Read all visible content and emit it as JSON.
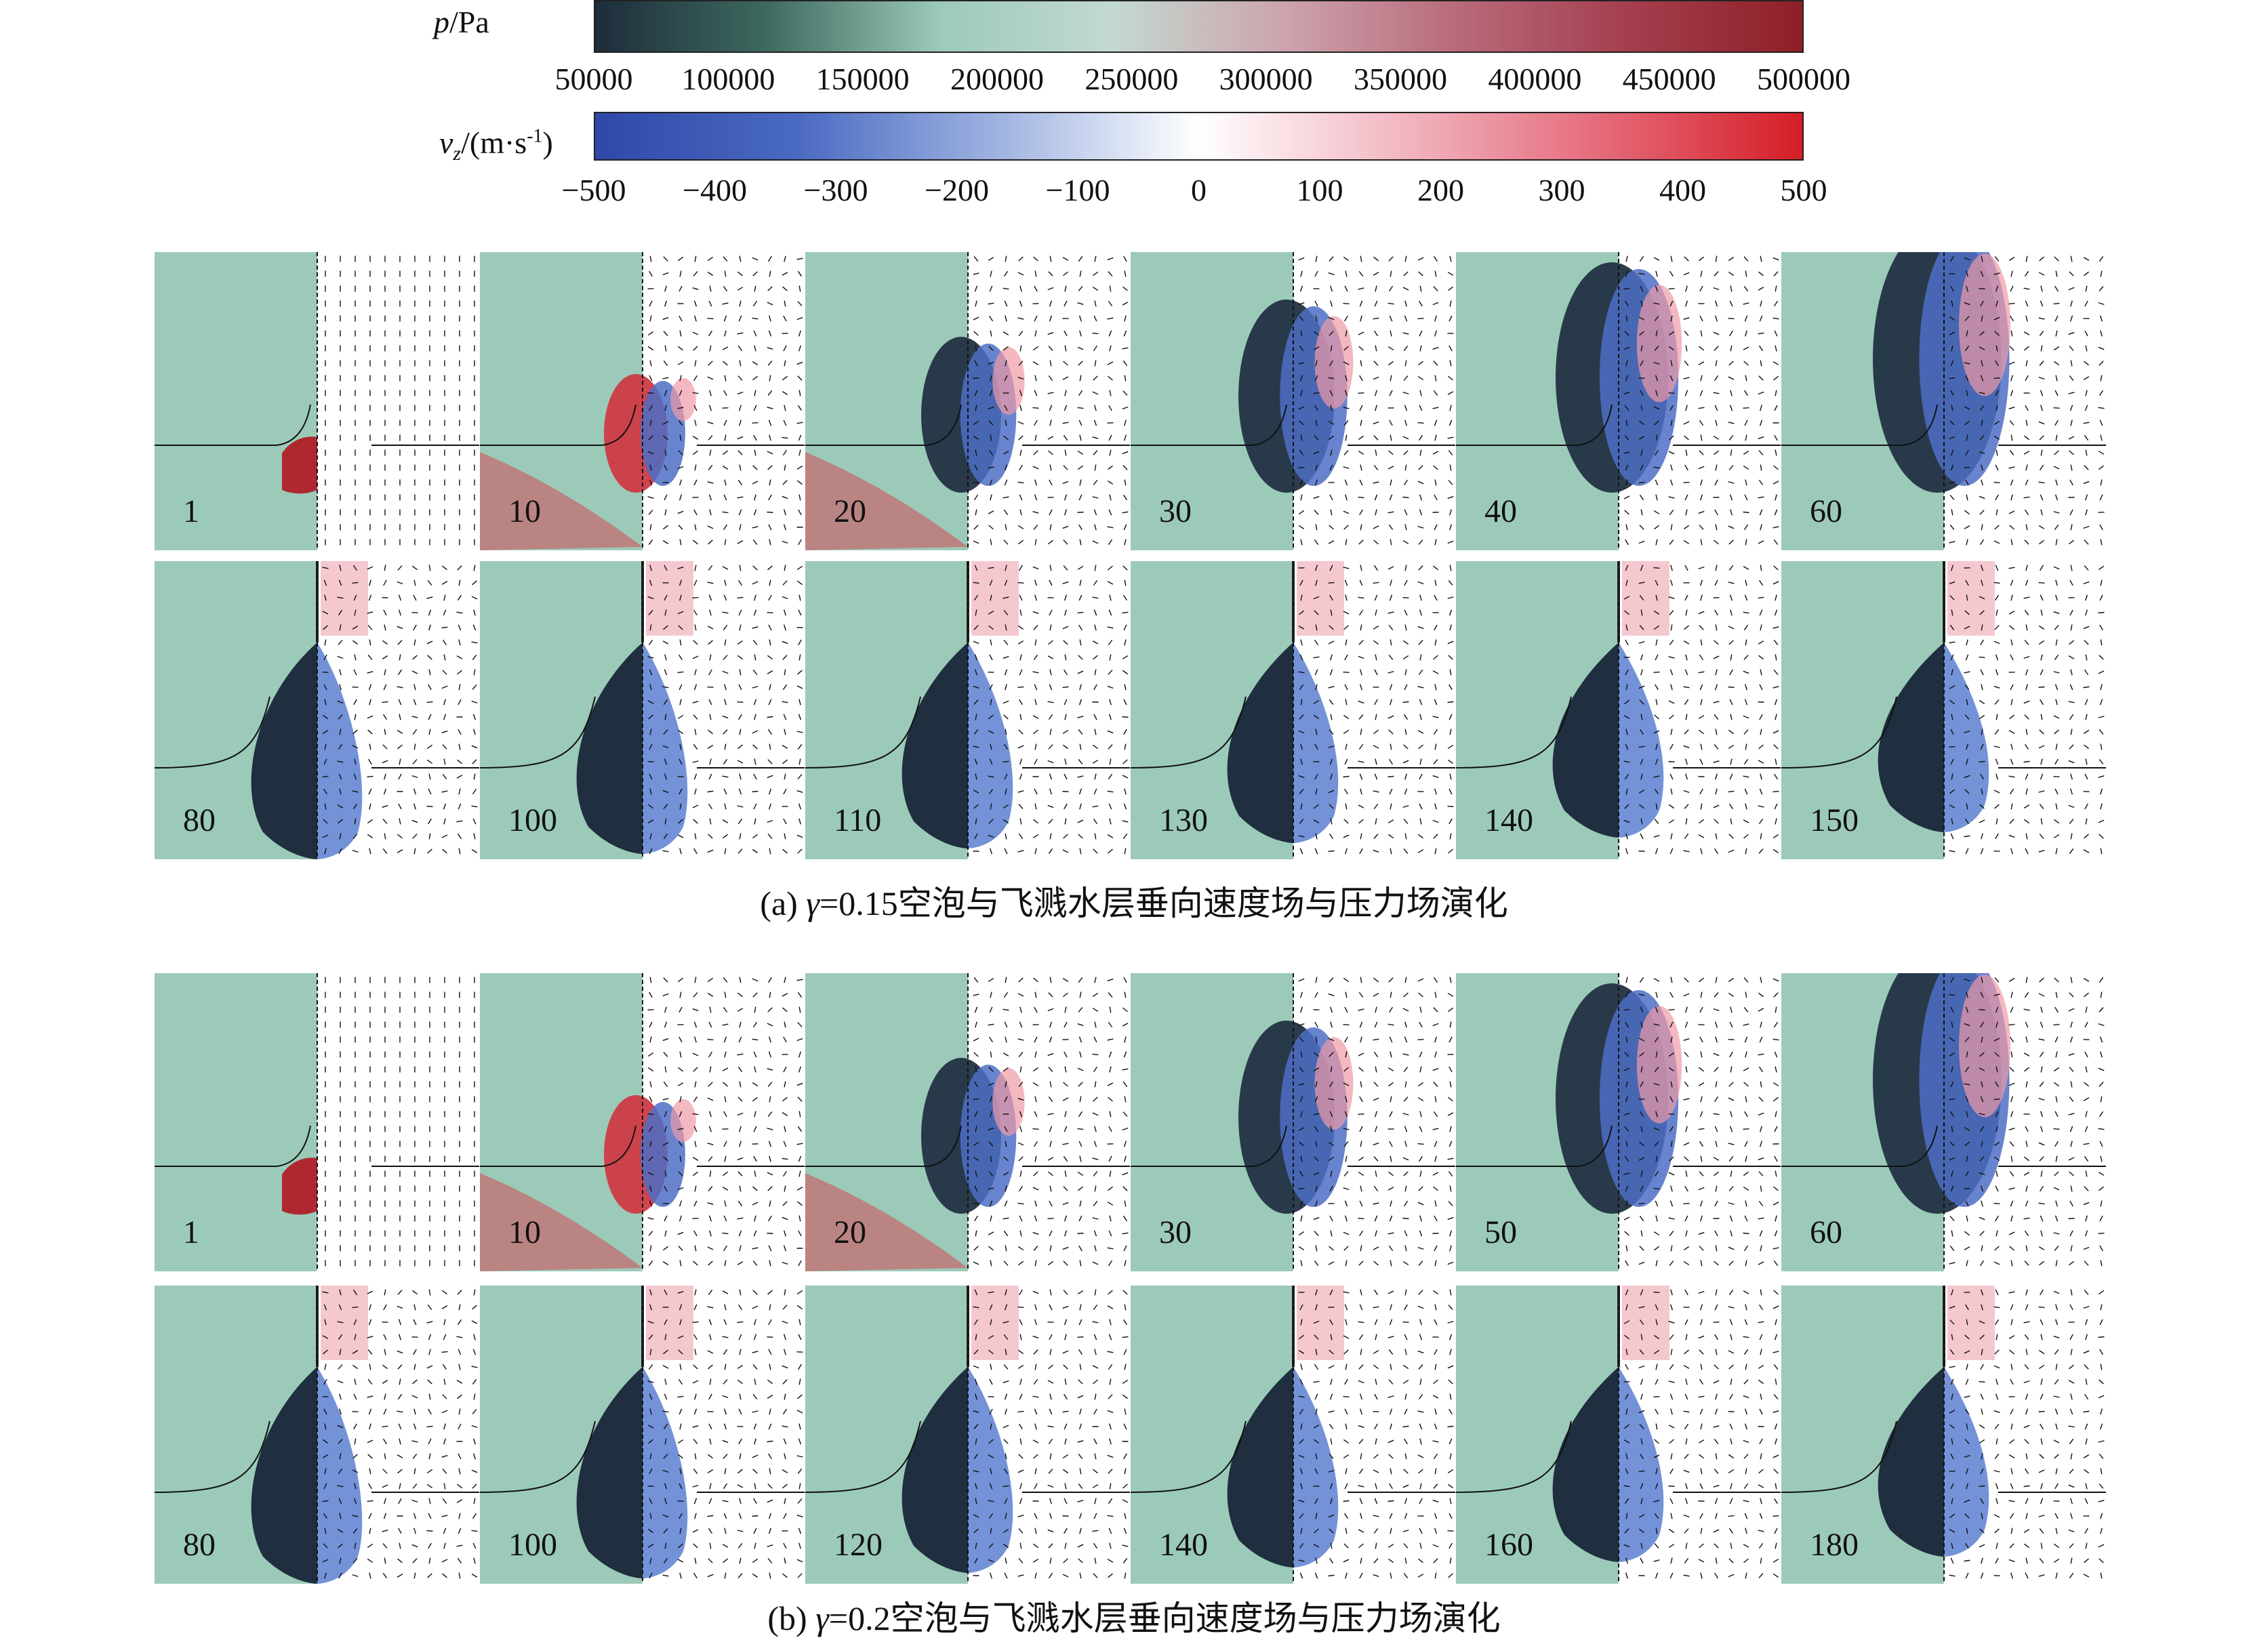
{
  "colorbar_pressure": {
    "symbol": "p",
    "unit": "/Pa",
    "ticks": [
      "50000",
      "100000",
      "150000",
      "200000",
      "250000",
      "300000",
      "350000",
      "400000",
      "450000",
      "500000"
    ],
    "colors": [
      "#1d2c3a",
      "#3e6a60",
      "#9ccab9",
      "#c3d9d0",
      "#cda3ad",
      "#b86a7a",
      "#a43e4e",
      "#8e1f26"
    ]
  },
  "colorbar_velocity": {
    "symbol": "v",
    "subscript": "z",
    "unit": "/(m·s",
    "unit_exp": "-1",
    "unit_close": ")",
    "ticks": [
      "−500",
      "−400",
      "−300",
      "−200",
      "−100",
      "0",
      "100",
      "200",
      "300",
      "400",
      "500"
    ],
    "colors": [
      "#2f48a8",
      "#4a6ac2",
      "#9fb3e1",
      "#ffffff",
      "#f3b7c2",
      "#e46a7a",
      "#d61e26"
    ]
  },
  "section_a": {
    "caption_prefix": "(a) ",
    "gamma_symbol": "γ",
    "caption_suffix": "=0.15空泡与飞溅水层垂向速度场与压力场演化",
    "row1_frames": [
      "1",
      "10",
      "20",
      "30",
      "40",
      "60"
    ],
    "row2_frames": [
      "80",
      "100",
      "110",
      "130",
      "140",
      "150"
    ]
  },
  "section_b": {
    "caption_prefix": "(b) ",
    "gamma_symbol": "γ",
    "caption_suffix": "=0.2空泡与飞溅水层垂向速度场与压力场演化",
    "row1_frames": [
      "1",
      "10",
      "20",
      "30",
      "50",
      "60"
    ],
    "row2_frames": [
      "80",
      "100",
      "120",
      "140",
      "160",
      "180"
    ]
  }
}
